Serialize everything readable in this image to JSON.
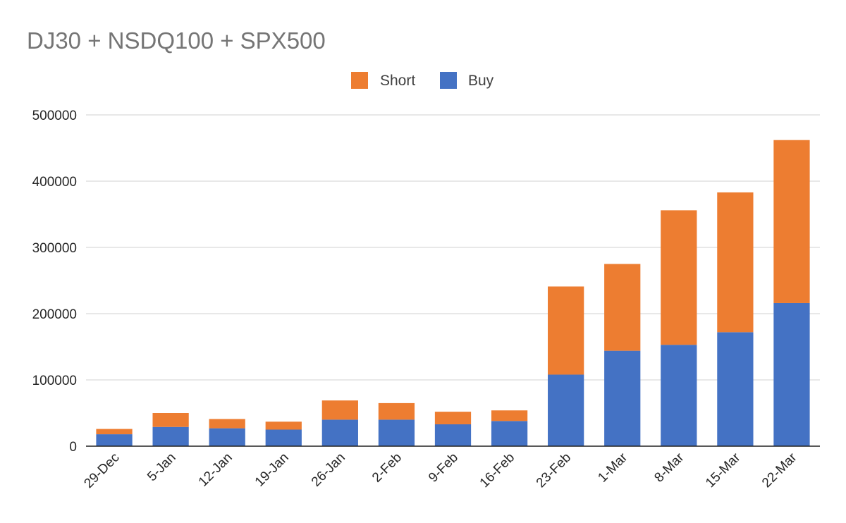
{
  "chart_data": {
    "type": "bar",
    "stacked": true,
    "title": "DJ30 + NSDQ100 + SPX500",
    "xlabel": "",
    "ylabel": "",
    "ylim": [
      0,
      500000
    ],
    "yticks": [
      0,
      100000,
      200000,
      300000,
      400000,
      500000
    ],
    "ytick_labels": [
      "0",
      "100000",
      "200000",
      "300000",
      "400000",
      "500000"
    ],
    "grid": true,
    "legend_position": "top-center",
    "categories": [
      "29-Dec",
      "5-Jan",
      "12-Jan",
      "19-Jan",
      "26-Jan",
      "2-Feb",
      "9-Feb",
      "16-Feb",
      "23-Feb",
      "1-Mar",
      "8-Mar",
      "15-Mar",
      "22-Mar"
    ],
    "series": [
      {
        "name": "Buy",
        "color": "#4472c4",
        "values": [
          18000,
          29000,
          27000,
          25000,
          40000,
          40000,
          33000,
          38000,
          108000,
          144000,
          153000,
          172000,
          216000
        ]
      },
      {
        "name": "Short",
        "color": "#ed7d31",
        "values": [
          8000,
          21000,
          14000,
          12000,
          29000,
          25000,
          19000,
          16000,
          133000,
          131000,
          203000,
          211000,
          246000
        ]
      }
    ],
    "legend_order": [
      "Short",
      "Buy"
    ]
  }
}
